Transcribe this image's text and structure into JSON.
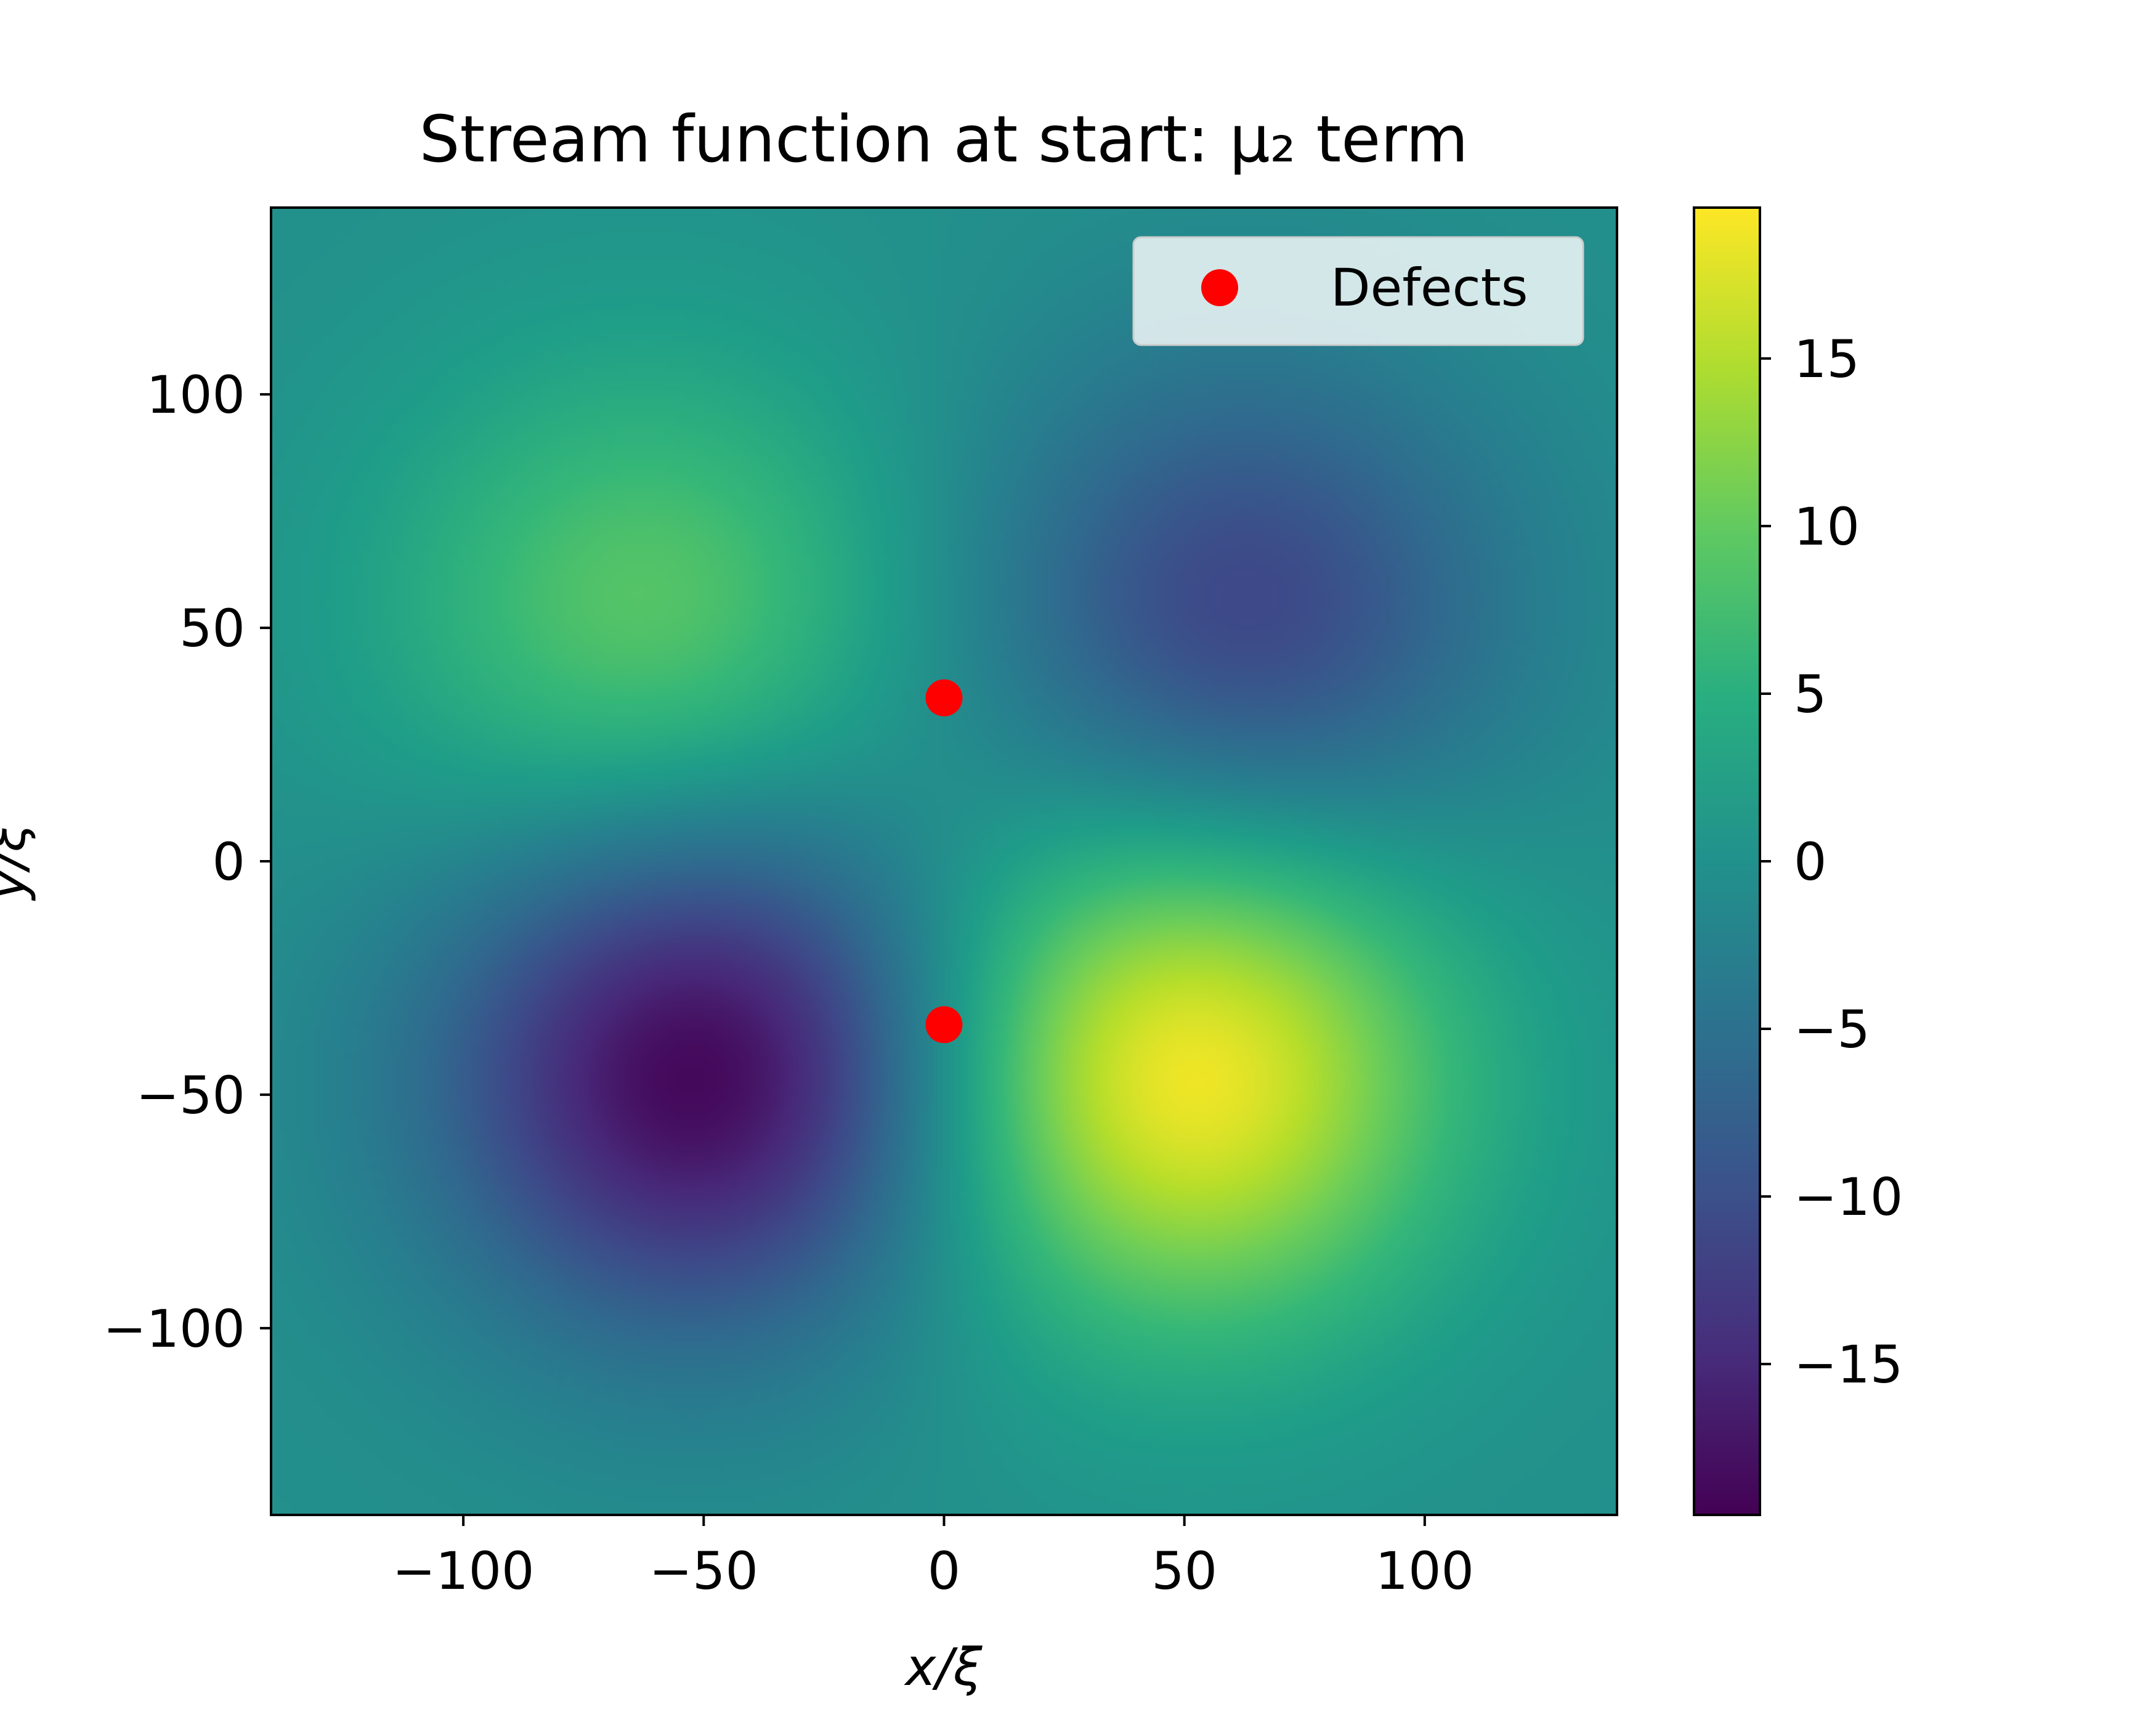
{
  "chart_data": {
    "type": "heatmap",
    "title": "Stream function at start: μ₂ term",
    "xlabel": "x/ξ",
    "ylabel": "y/ξ",
    "xlim": [
      -140,
      140
    ],
    "ylim": [
      -140,
      140
    ],
    "x_ticks": [
      -100,
      -50,
      0,
      50,
      100
    ],
    "y_ticks": [
      -100,
      -50,
      0,
      50,
      100
    ],
    "x_tick_labels": [
      "−100",
      "−50",
      "0",
      "50",
      "100"
    ],
    "y_tick_labels": [
      "−100",
      "−50",
      "0",
      "50",
      "100"
    ],
    "colormap": "viridis",
    "color_range": [
      -19.5,
      19.5
    ],
    "colorbar_ticks": [
      15,
      10,
      5,
      0,
      -5,
      -10,
      -15
    ],
    "colorbar_tick_labels": [
      "15",
      "10",
      "5",
      "0",
      "−5",
      "−10",
      "−15"
    ],
    "field_extrema": [
      {
        "x": -62,
        "y": 52,
        "value": 9.5
      },
      {
        "x": 62,
        "y": 52,
        "value": -11.5
      },
      {
        "x": -50,
        "y": -45,
        "value": -19.5
      },
      {
        "x": 50,
        "y": -45,
        "value": 19.5
      }
    ],
    "series": [
      {
        "name": "Defects",
        "marker": "circle",
        "color": "#ff0000",
        "points": [
          {
            "x": 0,
            "y": 35
          },
          {
            "x": 0,
            "y": -35
          }
        ]
      }
    ],
    "legend": {
      "entries": [
        "Defects"
      ],
      "location": "top-right"
    },
    "grid": false
  }
}
